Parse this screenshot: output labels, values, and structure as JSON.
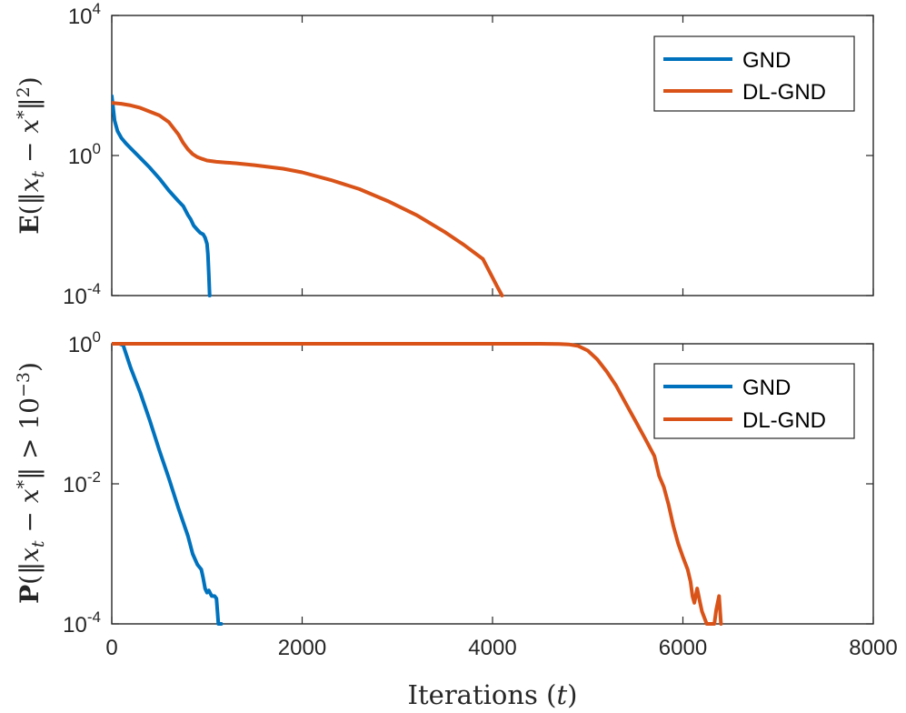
{
  "colors": {
    "gnd": "#0072BD",
    "dlgnd": "#D95319",
    "axis": "#262626"
  },
  "chart_data": [
    {
      "type": "line",
      "yscale": "log",
      "ylabel": "E(‖x_t − x*‖²)",
      "xlim": [
        0,
        8000
      ],
      "ylim": [
        0.0001,
        10000
      ],
      "ytick_values": [
        0.0001,
        1,
        10000
      ],
      "ytick_labels": [
        {
          "base": "10",
          "exp": "-4"
        },
        {
          "base": "10",
          "exp": "0"
        },
        {
          "base": "10",
          "exp": "4"
        }
      ],
      "legend": {
        "position": "top-right",
        "entries": [
          "GND",
          "DL-GND"
        ]
      },
      "series": [
        {
          "name": "GND",
          "x": [
            0,
            10,
            30,
            60,
            100,
            150,
            200,
            300,
            400,
            500,
            600,
            700,
            750,
            800,
            830,
            860,
            900,
            930,
            960,
            980,
            1000,
            1010,
            1020,
            1028
          ],
          "y": [
            50,
            30,
            10,
            5,
            3.2,
            2.2,
            1.6,
            0.85,
            0.45,
            0.22,
            0.1,
            0.05,
            0.036,
            0.02,
            0.015,
            0.01,
            0.0075,
            0.0062,
            0.0056,
            0.0045,
            0.003,
            0.0015,
            0.0004,
            0.0001
          ]
        },
        {
          "name": "DL-GND",
          "x": [
            0,
            100,
            200,
            300,
            400,
            500,
            600,
            700,
            750,
            800,
            850,
            900,
            950,
            1000,
            1100,
            1200,
            1300,
            1500,
            1800,
            2000,
            2300,
            2600,
            2900,
            3200,
            3500,
            3700,
            3900,
            4050,
            4100
          ],
          "y": [
            32,
            30,
            27,
            23,
            18,
            14,
            9,
            4,
            2.3,
            1.5,
            1.1,
            0.9,
            0.8,
            0.72,
            0.66,
            0.63,
            0.6,
            0.53,
            0.42,
            0.33,
            0.2,
            0.11,
            0.05,
            0.02,
            0.0065,
            0.0028,
            0.0011,
            0.00018,
            0.0001
          ]
        }
      ]
    },
    {
      "type": "line",
      "yscale": "log",
      "xlabel": "Iterations (t)",
      "ylabel": "P(‖x_t − x*‖ > 10⁻³)",
      "xlim": [
        0,
        8000
      ],
      "ylim": [
        0.0001,
        1
      ],
      "xtick_values": [
        0,
        2000,
        4000,
        6000,
        8000
      ],
      "xtick_labels": [
        "0",
        "2000",
        "4000",
        "6000",
        "8000"
      ],
      "ytick_values": [
        0.0001,
        0.01,
        1
      ],
      "ytick_labels": [
        {
          "base": "10",
          "exp": "-4"
        },
        {
          "base": "10",
          "exp": "-2"
        },
        {
          "base": "10",
          "exp": "0"
        }
      ],
      "legend": {
        "position": "upper-right",
        "entries": [
          "GND",
          "DL-GND"
        ]
      },
      "series": [
        {
          "name": "GND",
          "x": [
            0,
            80,
            120,
            200,
            300,
            400,
            500,
            600,
            700,
            800,
            850,
            900,
            940,
            960,
            980,
            1000,
            1020,
            1050,
            1080,
            1100,
            1110,
            1120,
            1150
          ],
          "y": [
            1,
            1,
            0.95,
            0.45,
            0.2,
            0.08,
            0.03,
            0.012,
            0.0045,
            0.0018,
            0.001,
            0.0007,
            0.0006,
            0.00045,
            0.00032,
            0.00028,
            0.0003,
            0.00025,
            0.00025,
            0.00023,
            0.00015,
            0.0001,
            0.0001
          ]
        },
        {
          "name": "DL-GND",
          "x": [
            0,
            1000,
            2000,
            3000,
            4000,
            4500,
            4700,
            4800,
            4900,
            5000,
            5100,
            5200,
            5300,
            5400,
            5500,
            5600,
            5700,
            5750,
            5800,
            5850,
            5900,
            5950,
            6000,
            6050,
            6080,
            6100,
            6120,
            6150,
            6180,
            6200,
            6250,
            6300,
            6330,
            6350,
            6380,
            6400
          ],
          "y": [
            1,
            1,
            1,
            1,
            1,
            1,
            0.995,
            0.98,
            0.93,
            0.8,
            0.6,
            0.4,
            0.25,
            0.14,
            0.08,
            0.045,
            0.025,
            0.013,
            0.009,
            0.005,
            0.0025,
            0.0014,
            0.0009,
            0.0006,
            0.0004,
            0.00025,
            0.0002,
            0.00032,
            0.0002,
            0.00015,
            0.0001,
            0.0001,
            0.0001,
            0.00016,
            0.00025,
            0.0001
          ]
        }
      ]
    }
  ]
}
